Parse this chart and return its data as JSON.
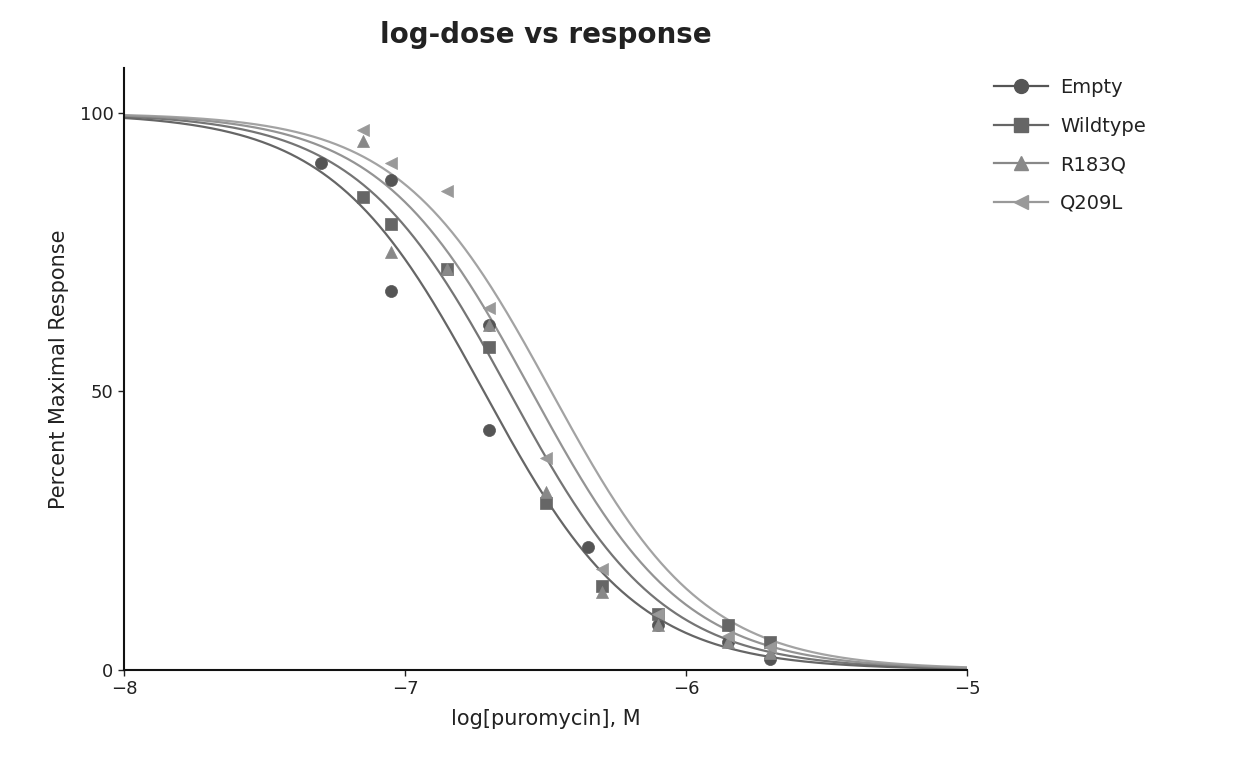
{
  "title": "log-dose vs response",
  "xlabel": "log[puromycin], M",
  "ylabel": "Percent Maximal Response",
  "xlim": [
    -8,
    -5
  ],
  "ylim": [
    0,
    108
  ],
  "xticks": [
    -8,
    -7,
    -6,
    -5
  ],
  "yticks": [
    0,
    50,
    100
  ],
  "background_color": "#ffffff",
  "title_fontsize": 20,
  "axis_label_fontsize": 15,
  "tick_fontsize": 13,
  "legend_fontsize": 14,
  "series": [
    {
      "name": "Empty",
      "ec50_log": -6.72,
      "hill": 1.6,
      "color": "#555555",
      "marker": "o",
      "markersize": 8,
      "data_x": [
        -7.3,
        -7.05,
        -7.05,
        -6.7,
        -6.7,
        -6.35,
        -6.1,
        -5.85,
        -5.7
      ],
      "data_y": [
        91,
        88,
        68,
        62,
        43,
        22,
        8,
        5,
        2
      ]
    },
    {
      "name": "Wildtype",
      "ec50_log": -6.63,
      "hill": 1.6,
      "color": "#666666",
      "marker": "s",
      "markersize": 8,
      "data_x": [
        -7.15,
        -7.05,
        -6.85,
        -6.7,
        -6.5,
        -6.3,
        -6.1,
        -5.85,
        -5.7
      ],
      "data_y": [
        85,
        80,
        72,
        58,
        30,
        15,
        10,
        8,
        5
      ]
    },
    {
      "name": "R183Q",
      "ec50_log": -6.55,
      "hill": 1.6,
      "color": "#888888",
      "marker": "^",
      "markersize": 9,
      "data_x": [
        -7.15,
        -7.05,
        -6.85,
        -6.7,
        -6.5,
        -6.3,
        -6.1,
        -5.85,
        -5.7
      ],
      "data_y": [
        95,
        75,
        72,
        62,
        32,
        14,
        8,
        5,
        3
      ]
    },
    {
      "name": "Q209L",
      "ec50_log": -6.48,
      "hill": 1.6,
      "color": "#999999",
      "marker": "<",
      "markersize": 9,
      "data_x": [
        -7.15,
        -7.05,
        -6.85,
        -6.7,
        -6.5,
        -6.3,
        -6.1,
        -5.85,
        -5.7
      ],
      "data_y": [
        97,
        91,
        86,
        65,
        38,
        18,
        10,
        6,
        4
      ]
    }
  ]
}
